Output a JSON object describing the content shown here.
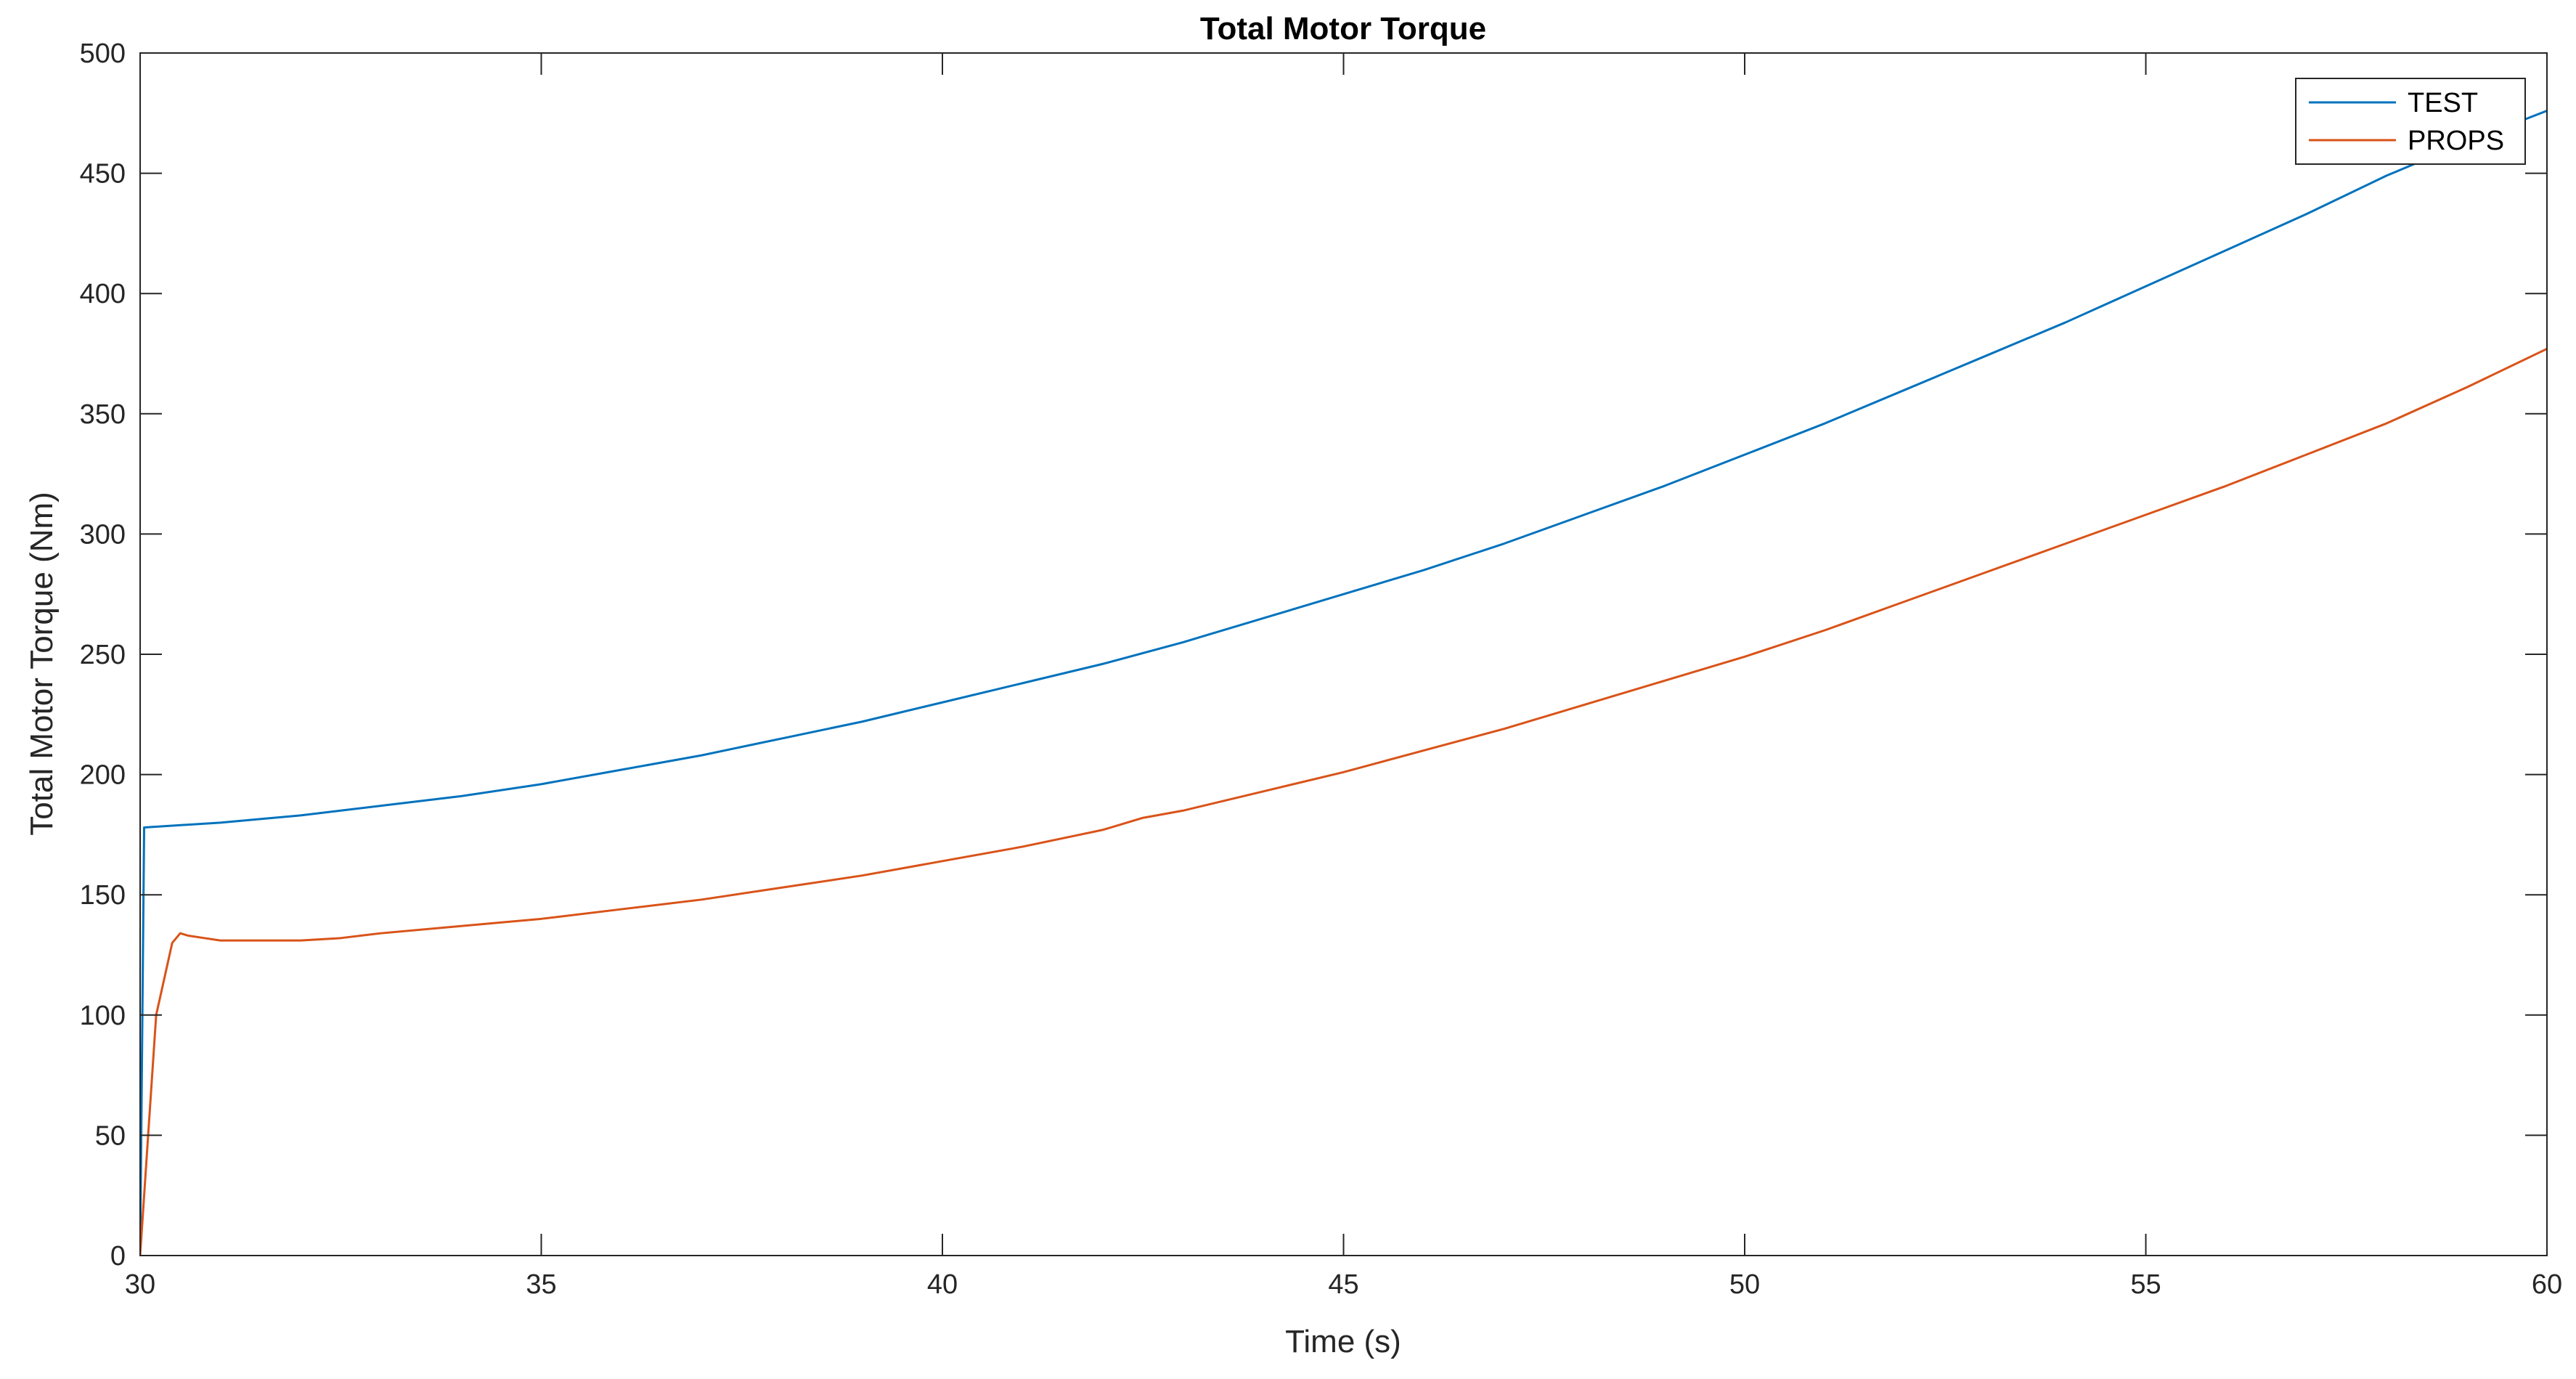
{
  "chart_data": {
    "type": "line",
    "title": "Total Motor Torque",
    "xlabel": "Time (s)",
    "ylabel": "Total Motor Torque (Nm)",
    "xlim": [
      30,
      60
    ],
    "ylim": [
      0,
      500
    ],
    "xticks": [
      30,
      35,
      40,
      45,
      50,
      55,
      60
    ],
    "yticks": [
      0,
      50,
      100,
      150,
      200,
      250,
      300,
      350,
      400,
      450,
      500
    ],
    "grid": false,
    "legend_position": "top-right",
    "series": [
      {
        "name": "TEST",
        "color": "#0072BD",
        "x": [
          30,
          30.05,
          31,
          32,
          33,
          34,
          35,
          36,
          37,
          38,
          39,
          40,
          41,
          42,
          43,
          44,
          45,
          46,
          47,
          48,
          49,
          50,
          51,
          52,
          53,
          54,
          55,
          56,
          57,
          58,
          59,
          60
        ],
        "y": [
          0,
          178,
          180,
          183,
          187,
          191,
          196,
          202,
          208,
          215,
          222,
          230,
          238,
          246,
          255,
          265,
          275,
          285,
          296,
          308,
          320,
          333,
          346,
          360,
          374,
          388,
          403,
          418,
          433,
          449,
          463,
          476
        ]
      },
      {
        "name": "PROPS",
        "color": "#D95319",
        "x": [
          30,
          30.2,
          30.3,
          30.4,
          30.5,
          30.6,
          30.8,
          31,
          31.5,
          32,
          32.5,
          33,
          34,
          35,
          36,
          37,
          38,
          39,
          40,
          41,
          42,
          42.5,
          43,
          44,
          45,
          46,
          47,
          48,
          49,
          50,
          51,
          52,
          53,
          54,
          55,
          56,
          57,
          58,
          59,
          60
        ],
        "y": [
          0,
          100,
          115,
          130,
          134,
          133,
          132,
          131,
          131,
          131,
          132,
          134,
          137,
          140,
          144,
          148,
          153,
          158,
          164,
          170,
          177,
          182,
          185,
          193,
          201,
          210,
          219,
          229,
          239,
          249,
          260,
          272,
          284,
          296,
          308,
          320,
          333,
          346,
          361,
          377
        ]
      }
    ]
  }
}
